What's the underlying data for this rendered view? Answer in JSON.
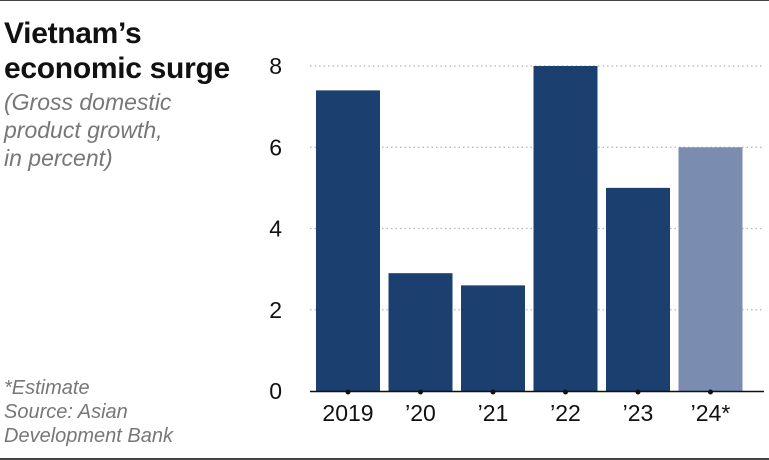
{
  "header": {
    "title_line1": "Vietnam’s",
    "title_line2": "economic surge",
    "subtitle_line1": "(Gross domestic",
    "subtitle_line2": "product growth,",
    "subtitle_line3": "in percent)"
  },
  "footer": {
    "note": "*Estimate",
    "source_line1": "Source: Asian",
    "source_line2": "Development Bank"
  },
  "colors": {
    "actual": "#1b3f6f",
    "estimate": "#7b8cb1",
    "estimate_label": "#8a8a8a",
    "grid": "#b5b5b5",
    "axis": "#111111"
  },
  "chart_data": {
    "type": "bar",
    "title": "Vietnam’s economic surge",
    "subtitle": "(Gross domestic product growth, in percent)",
    "categories": [
      "2019",
      "’20",
      "’21",
      "’22",
      "’23",
      "’24*"
    ],
    "values": [
      7.4,
      2.9,
      2.6,
      8.0,
      5.0,
      6.0
    ],
    "estimate_flags": [
      false,
      false,
      false,
      false,
      false,
      true
    ],
    "ylim": [
      0,
      8
    ],
    "yticks": [
      0,
      2,
      4,
      6,
      8
    ],
    "grid": "horizontal dotted",
    "xlabel": "",
    "ylabel": ""
  }
}
